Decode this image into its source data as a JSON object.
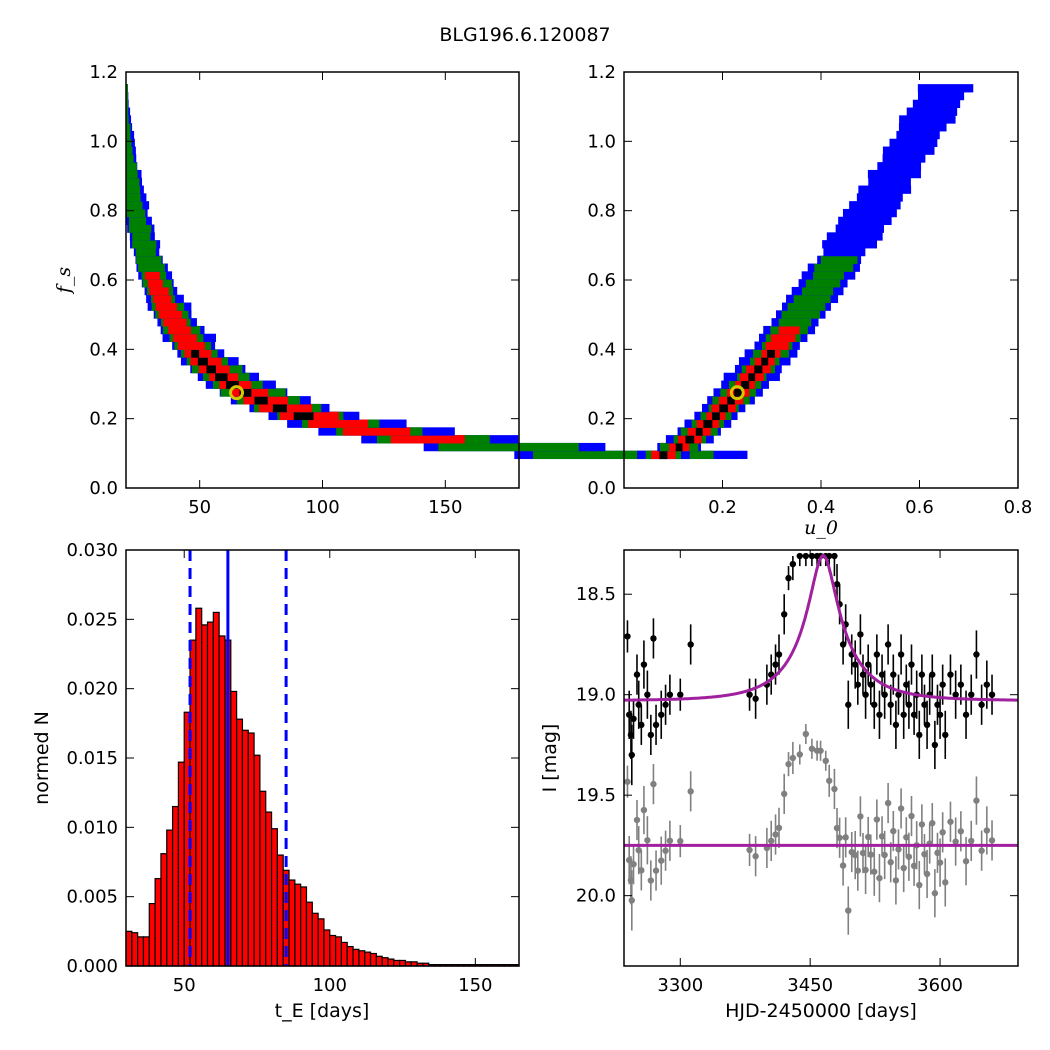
{
  "figure_title": "BLG196.6.120087",
  "chart_data": [
    {
      "id": "fs_vs_tE",
      "type": "heatmap",
      "title": "",
      "xlabel": "",
      "ylabel": "f_s",
      "xlim": [
        20,
        180
      ],
      "ylim": [
        0.0,
        1.2
      ],
      "xticks": [
        50,
        100,
        150
      ],
      "yticks": [
        0.0,
        0.2,
        0.4,
        0.6,
        0.8,
        1.0,
        1.2
      ],
      "xtick_labels": [
        "50",
        "100",
        "150"
      ],
      "ytick_labels": [
        "0.0",
        "0.2",
        "0.4",
        "0.6",
        "0.8",
        "1.0",
        "1.2"
      ],
      "confidence_colors": [
        "#0000ff",
        "#008000",
        "#ff0000",
        "#000000"
      ],
      "curve_fs_times_tE": 18,
      "band_fs_range": [
        0.085,
        1.16
      ],
      "best_fit": {
        "x": 65,
        "y": 0.275
      },
      "marker_color": "#d4c800"
    },
    {
      "id": "fs_vs_u0",
      "type": "heatmap",
      "title": "",
      "xlabel": "u_0",
      "ylabel": "",
      "xlim": [
        0.0,
        0.8
      ],
      "ylim": [
        0.0,
        1.2
      ],
      "xticks": [
        0.2,
        0.4,
        0.6,
        0.8
      ],
      "yticks": [
        0.0,
        0.2,
        0.4,
        0.6,
        0.8,
        1.0,
        1.2
      ],
      "xtick_labels": [
        "0.2",
        "0.4",
        "0.6",
        "0.8"
      ],
      "ytick_labels": [
        "0.0",
        "0.2",
        "0.4",
        "0.6",
        "0.8",
        "1.0",
        "1.2"
      ],
      "confidence_colors": [
        "#0000ff",
        "#008000",
        "#ff0000",
        "#000000"
      ],
      "band_u0_range": [
        0.08,
        0.66
      ],
      "band_fs_range": [
        0.085,
        1.16
      ],
      "best_fit": {
        "x": 0.23,
        "y": 0.275
      },
      "marker_color": "#d4c800"
    },
    {
      "id": "tE_histogram",
      "type": "bar",
      "title": "",
      "xlabel": "t_E [days]",
      "ylabel": "normed N",
      "xlim": [
        30,
        165
      ],
      "ylim": [
        0.0,
        0.03
      ],
      "xticks": [
        50,
        100,
        150
      ],
      "yticks": [
        0.0,
        0.005,
        0.01,
        0.015,
        0.02,
        0.025,
        0.03
      ],
      "xtick_labels": [
        "50",
        "100",
        "150"
      ],
      "ytick_labels": [
        "0.000",
        "0.005",
        "0.010",
        "0.015",
        "0.020",
        "0.025",
        "0.030"
      ],
      "bin_start": 30,
      "bin_width": 2,
      "values": [
        0.0025,
        0.0024,
        0.0021,
        0.0021,
        0.0045,
        0.0063,
        0.0081,
        0.0098,
        0.0115,
        0.0147,
        0.0183,
        0.0235,
        0.0258,
        0.0246,
        0.0248,
        0.0255,
        0.0238,
        0.0235,
        0.0198,
        0.0178,
        0.017,
        0.0168,
        0.0152,
        0.0126,
        0.0111,
        0.0099,
        0.008,
        0.0069,
        0.0062,
        0.0059,
        0.0057,
        0.0046,
        0.0038,
        0.0034,
        0.0026,
        0.0022,
        0.0021,
        0.0017,
        0.0014,
        0.0012,
        0.0011,
        0.001,
        0.0009,
        0.0007,
        0.0006,
        0.0005,
        0.0004,
        0.0004,
        0.0003,
        0.0003,
        0.0002,
        0.0002,
        0.0001,
        0.0001,
        0.0001,
        0.0001,
        0.0001,
        0.0001,
        0.0001,
        0.0001,
        0.0001,
        0.0001,
        0.0001,
        0.0001,
        0.0001,
        0.0001,
        0.0001,
        0.0001
      ],
      "bar_color": "#ff0000",
      "median": 65,
      "interval": [
        52,
        85
      ],
      "line_color": "#0000ff"
    },
    {
      "id": "light_curve",
      "type": "scatter",
      "title": "",
      "xlabel": "HJD-2450000 [days]",
      "ylabel": "I [mag]",
      "xlim": [
        3235,
        3690
      ],
      "ylim": [
        20.35,
        18.28
      ],
      "y_inverted": true,
      "xticks": [
        3300,
        3450,
        3600
      ],
      "yticks": [
        18.5,
        19.0,
        19.5,
        20.0
      ],
      "xtick_labels": [
        "3300",
        "3450",
        "3600"
      ],
      "ytick_labels": [
        "18.5",
        "19.0",
        "19.5",
        "20.0"
      ],
      "model_color": "#a020a0",
      "data_color": "#000000",
      "residual_color": "#808080",
      "model": {
        "t0": 3465,
        "tE": 65,
        "u0": 0.23,
        "fs": 0.275,
        "baseline": 19.03
      },
      "residual_offset_mag": 0.72,
      "data_points": [
        [
          3239,
          18.71,
          0.08
        ],
        [
          3241,
          19.1,
          0.12
        ],
        [
          3243,
          19.2,
          0.12
        ],
        [
          3244,
          19.3,
          0.15
        ],
        [
          3246,
          19.12,
          0.1
        ],
        [
          3250,
          18.9,
          0.1
        ],
        [
          3252,
          19.05,
          0.12
        ],
        [
          3255,
          19.15,
          0.1
        ],
        [
          3258,
          18.85,
          0.12
        ],
        [
          3262,
          19.0,
          0.12
        ],
        [
          3266,
          19.2,
          0.1
        ],
        [
          3269,
          18.72,
          0.1
        ],
        [
          3272,
          19.15,
          0.1
        ],
        [
          3278,
          19.1,
          0.12
        ],
        [
          3283,
          19.05,
          0.1
        ],
        [
          3288,
          19.0,
          0.1
        ],
        [
          3300,
          19.0,
          0.08
        ],
        [
          3312,
          18.75,
          0.1
        ],
        [
          3380,
          19.0,
          0.08
        ],
        [
          3387,
          19.02,
          0.1
        ],
        [
          3400,
          18.95,
          0.1
        ],
        [
          3405,
          18.9,
          0.1
        ],
        [
          3410,
          18.85,
          0.1
        ],
        [
          3414,
          18.8,
          0.1
        ],
        [
          3420,
          18.6,
          0.1
        ],
        [
          3425,
          18.42,
          0.06
        ],
        [
          3430,
          18.35,
          0.08
        ],
        [
          3438,
          18.25,
          0.05
        ],
        [
          3445,
          18.05,
          0.05
        ],
        [
          3452,
          18.0,
          0.05
        ],
        [
          3458,
          17.9,
          0.05
        ],
        [
          3462,
          17.85,
          0.05
        ],
        [
          3468,
          17.9,
          0.05
        ],
        [
          3472,
          18.05,
          0.08
        ],
        [
          3478,
          18.2,
          0.1
        ],
        [
          3481,
          18.45,
          0.1
        ],
        [
          3484,
          18.55,
          0.1
        ],
        [
          3488,
          18.75,
          0.1
        ],
        [
          3491,
          18.65,
          0.1
        ],
        [
          3494,
          19.05,
          0.12
        ],
        [
          3498,
          18.8,
          0.1
        ],
        [
          3502,
          18.85,
          0.12
        ],
        [
          3505,
          18.95,
          0.1
        ],
        [
          3508,
          18.7,
          0.1
        ],
        [
          3511,
          18.9,
          0.1
        ],
        [
          3514,
          19.0,
          0.12
        ],
        [
          3517,
          18.85,
          0.1
        ],
        [
          3520,
          18.95,
          0.1
        ],
        [
          3524,
          19.05,
          0.12
        ],
        [
          3527,
          18.8,
          0.1
        ],
        [
          3530,
          19.1,
          0.12
        ],
        [
          3533,
          18.9,
          0.1
        ],
        [
          3536,
          19.0,
          0.12
        ],
        [
          3540,
          18.75,
          0.1
        ],
        [
          3543,
          19.05,
          0.1
        ],
        [
          3546,
          18.9,
          0.1
        ],
        [
          3549,
          19.15,
          0.12
        ],
        [
          3552,
          19.0,
          0.1
        ],
        [
          3555,
          18.8,
          0.1
        ],
        [
          3558,
          19.1,
          0.12
        ],
        [
          3561,
          18.95,
          0.1
        ],
        [
          3564,
          19.05,
          0.12
        ],
        [
          3567,
          18.85,
          0.1
        ],
        [
          3570,
          19.1,
          0.1
        ],
        [
          3573,
          19.0,
          0.12
        ],
        [
          3576,
          19.2,
          0.12
        ],
        [
          3579,
          18.9,
          0.1
        ],
        [
          3582,
          19.05,
          0.1
        ],
        [
          3585,
          19.15,
          0.12
        ],
        [
          3588,
          19.0,
          0.1
        ],
        [
          3591,
          18.9,
          0.1
        ],
        [
          3594,
          19.25,
          0.12
        ],
        [
          3597,
          19.05,
          0.1
        ],
        [
          3600,
          19.1,
          0.12
        ],
        [
          3603,
          18.95,
          0.1
        ],
        [
          3606,
          19.2,
          0.12
        ],
        [
          3612,
          18.9,
          0.1
        ],
        [
          3618,
          19.0,
          0.12
        ],
        [
          3624,
          18.95,
          0.1
        ],
        [
          3630,
          19.1,
          0.12
        ],
        [
          3636,
          19.0,
          0.1
        ],
        [
          3642,
          18.8,
          0.12
        ],
        [
          3648,
          19.05,
          0.1
        ],
        [
          3654,
          18.95,
          0.12
        ],
        [
          3660,
          19.0,
          0.1
        ]
      ]
    }
  ]
}
